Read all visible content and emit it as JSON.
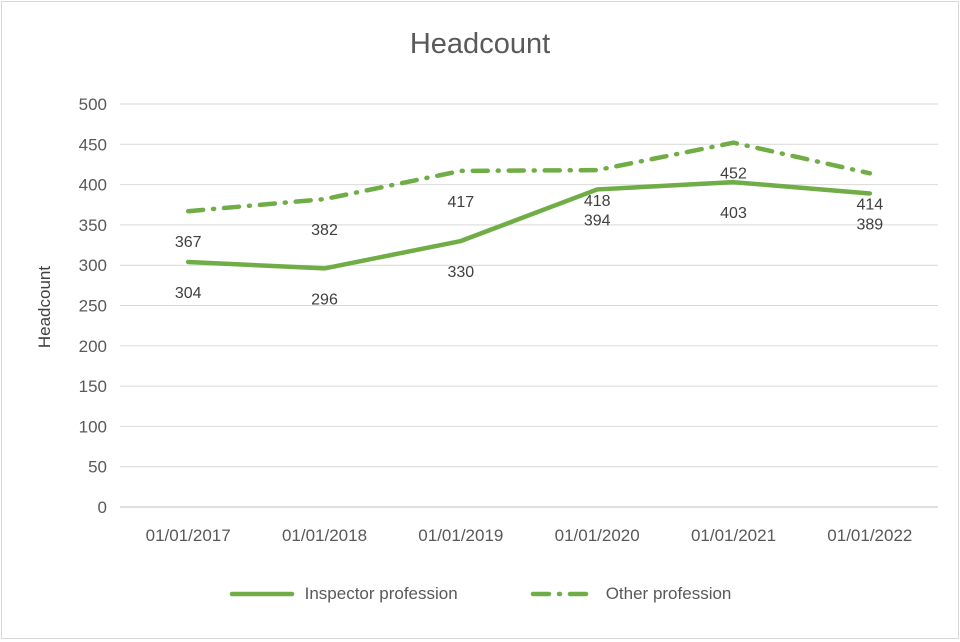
{
  "title": "Headcount",
  "y_axis": {
    "title": "Headcount"
  },
  "legend": {
    "items": [
      {
        "label": "Inspector profession",
        "style": "solid"
      },
      {
        "label": "Other profession",
        "style": "dash-dot"
      }
    ]
  },
  "colors": {
    "series": "#70AD47",
    "grid": "#D9D9D9",
    "axis": "#BFBFBF",
    "text": "#595959",
    "data_label": "#404040",
    "frame_border": "#D9D9D9",
    "background": "#FFFFFF"
  },
  "chart_data": {
    "type": "line",
    "title": "Headcount",
    "xlabel": "",
    "ylabel": "Headcount",
    "categories": [
      "01/01/2017",
      "01/01/2018",
      "01/01/2019",
      "01/01/2020",
      "01/01/2021",
      "01/01/2022"
    ],
    "series": [
      {
        "name": "Inspector profession",
        "values": [
          304,
          296,
          330,
          394,
          403,
          389
        ],
        "line_style": "solid"
      },
      {
        "name": "Other profession",
        "values": [
          367,
          382,
          417,
          418,
          452,
          414
        ],
        "line_style": "dash-dot"
      }
    ],
    "ylim": [
      0,
      500
    ],
    "ytick_step": 50,
    "grid": true,
    "legend_position": "bottom",
    "data_labels": true
  }
}
